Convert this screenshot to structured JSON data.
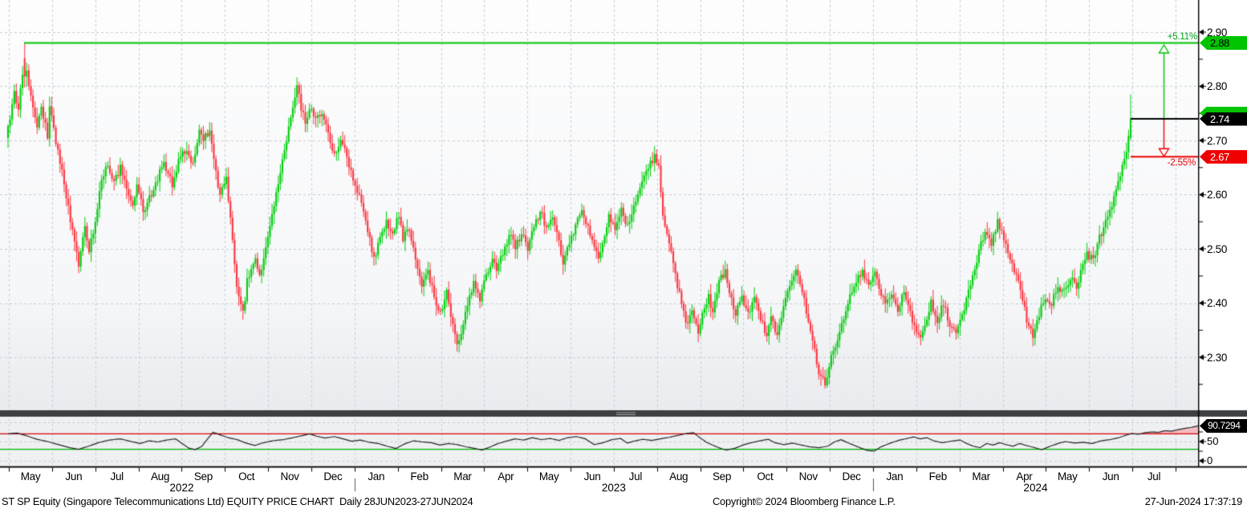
{
  "footer": {
    "title": "ST SP Equity (Singapore Telecommunications Ltd) EQUITY PRICE CHART  Daily 28JUN2023-27JUN2024",
    "copyright": "Copyright© 2024 Bloomberg Finance L.P.",
    "timestamp": "27-Jun-2024 17:37:19"
  },
  "colors": {
    "candle_up": "#00cd0c",
    "candle_down": "#fb3640",
    "high_line": "#00c400",
    "last_line": "#000000",
    "target_line": "#f00000",
    "tag_high_bg": "#00c400",
    "tag_high_text": "#000000",
    "tag_last_bg": "#000000",
    "tag_last_text": "#ffffff",
    "tag_backing_bg": "#00c400",
    "tag_target_bg": "#f00000",
    "tag_target_text": "#ffffff",
    "tag_rsi_bg": "#000000",
    "tag_rsi_text": "#ffffff",
    "pct_up_text": "#00a316",
    "pct_down_text": "#e00007",
    "grid": "#c7ccd8",
    "axis": "#000000",
    "rsi_line": "#26262a",
    "rsi_overbought_line": "#dd0000",
    "rsi_oversold_line": "#00b400",
    "rsi_over_fill": "rgba(255,70,80,0.30)",
    "rsi_under_fill": "rgba(0,190,60,0.30)",
    "separator": "#3d4043",
    "separator_grip": "#9aa0a4",
    "main_bg_top": "#fefefe",
    "main_bg_bottom": "#e9ebee",
    "rsi_bg": "#eef0f2"
  },
  "chart_data": {
    "type": "candlestick",
    "instrument": "ST SP Equity",
    "panels": [
      "price",
      "rsi"
    ],
    "ylim": [
      2.24,
      2.92
    ],
    "price_ticks": [
      "2.90",
      "2.80",
      "2.70",
      "2.60",
      "2.50",
      "2.40",
      "2.30"
    ],
    "minor_tick_step": 0.05,
    "months": [
      "May",
      "Jun",
      "Jul",
      "Aug",
      "Sep",
      "Oct",
      "Nov",
      "Dec",
      "Jan",
      "Feb",
      "Mar",
      "Apr",
      "May",
      "Jun",
      "Jul",
      "Aug",
      "Sep",
      "Oct",
      "Nov",
      "Dec",
      "Jan",
      "Feb",
      "Mar",
      "Apr",
      "May",
      "Jun",
      "Jul"
    ],
    "years": [
      "2022",
      "2023",
      "2024"
    ],
    "annotations": {
      "high": {
        "label": "2.88",
        "value": 2.88,
        "pct": "+5.11%"
      },
      "last": {
        "label": "2.74",
        "value": 2.74
      },
      "target": {
        "label": "2.67",
        "value": 2.67,
        "pct": "-2.55%"
      }
    },
    "record_high": {
      "day": 8,
      "open": 2.852,
      "high": 2.88,
      "low": 2.798,
      "close": 2.818
    },
    "last_candle": {
      "open": 2.705,
      "high": 2.785,
      "low": 2.7,
      "close": 2.74
    },
    "price_path": [
      [
        0,
        2.72
      ],
      [
        3,
        2.79
      ],
      [
        5,
        2.76
      ],
      [
        8,
        2.86
      ],
      [
        11,
        2.78
      ],
      [
        14,
        2.72
      ],
      [
        16,
        2.76
      ],
      [
        19,
        2.71
      ],
      [
        20,
        2.76
      ],
      [
        23,
        2.7
      ],
      [
        27,
        2.62
      ],
      [
        31,
        2.53
      ],
      [
        34,
        2.47
      ],
      [
        37,
        2.54
      ],
      [
        39,
        2.5
      ],
      [
        42,
        2.55
      ],
      [
        45,
        2.63
      ],
      [
        48,
        2.66
      ],
      [
        51,
        2.62
      ],
      [
        54,
        2.65
      ],
      [
        57,
        2.61
      ],
      [
        60,
        2.58
      ],
      [
        62,
        2.62
      ],
      [
        65,
        2.57
      ],
      [
        69,
        2.6
      ],
      [
        72,
        2.63
      ],
      [
        75,
        2.66
      ],
      [
        79,
        2.62
      ],
      [
        82,
        2.66
      ],
      [
        85,
        2.68
      ],
      [
        89,
        2.66
      ],
      [
        92,
        2.72
      ],
      [
        94,
        2.7
      ],
      [
        97,
        2.72
      ],
      [
        99,
        2.66
      ],
      [
        102,
        2.6
      ],
      [
        105,
        2.63
      ],
      [
        108,
        2.52
      ],
      [
        110,
        2.43
      ],
      [
        113,
        2.38
      ],
      [
        115,
        2.44
      ],
      [
        119,
        2.48
      ],
      [
        121,
        2.45
      ],
      [
        124,
        2.5
      ],
      [
        127,
        2.56
      ],
      [
        130,
        2.62
      ],
      [
        133,
        2.68
      ],
      [
        136,
        2.74
      ],
      [
        139,
        2.8
      ],
      [
        141,
        2.76
      ],
      [
        143,
        2.73
      ],
      [
        145,
        2.76
      ],
      [
        148,
        2.74
      ],
      [
        151,
        2.75
      ],
      [
        154,
        2.71
      ],
      [
        157,
        2.67
      ],
      [
        160,
        2.7
      ],
      [
        162,
        2.68
      ],
      [
        165,
        2.64
      ],
      [
        168,
        2.61
      ],
      [
        171,
        2.57
      ],
      [
        174,
        2.52
      ],
      [
        176,
        2.48
      ],
      [
        179,
        2.52
      ],
      [
        182,
        2.55
      ],
      [
        185,
        2.53
      ],
      [
        188,
        2.56
      ],
      [
        190,
        2.52
      ],
      [
        193,
        2.54
      ],
      [
        196,
        2.48
      ],
      [
        199,
        2.43
      ],
      [
        202,
        2.46
      ],
      [
        205,
        2.41
      ],
      [
        208,
        2.38
      ],
      [
        211,
        2.42
      ],
      [
        214,
        2.36
      ],
      [
        216,
        2.32
      ],
      [
        219,
        2.36
      ],
      [
        221,
        2.4
      ],
      [
        224,
        2.44
      ],
      [
        227,
        2.41
      ],
      [
        230,
        2.45
      ],
      [
        233,
        2.48
      ],
      [
        235,
        2.46
      ],
      [
        239,
        2.5
      ],
      [
        242,
        2.53
      ],
      [
        244,
        2.5
      ],
      [
        247,
        2.53
      ],
      [
        250,
        2.5
      ],
      [
        253,
        2.54
      ],
      [
        256,
        2.57
      ],
      [
        259,
        2.54
      ],
      [
        262,
        2.56
      ],
      [
        265,
        2.51
      ],
      [
        267,
        2.47
      ],
      [
        270,
        2.51
      ],
      [
        273,
        2.54
      ],
      [
        276,
        2.57
      ],
      [
        279,
        2.54
      ],
      [
        282,
        2.5
      ],
      [
        284,
        2.48
      ],
      [
        287,
        2.53
      ],
      [
        289,
        2.56
      ],
      [
        292,
        2.54
      ],
      [
        295,
        2.57
      ],
      [
        298,
        2.54
      ],
      [
        300,
        2.57
      ],
      [
        303,
        2.6
      ],
      [
        306,
        2.63
      ],
      [
        309,
        2.66
      ],
      [
        311,
        2.67
      ],
      [
        313,
        2.65
      ],
      [
        315,
        2.56
      ],
      [
        319,
        2.5
      ],
      [
        321,
        2.45
      ],
      [
        324,
        2.4
      ],
      [
        326,
        2.36
      ],
      [
        329,
        2.38
      ],
      [
        332,
        2.35
      ],
      [
        334,
        2.38
      ],
      [
        337,
        2.41
      ],
      [
        339,
        2.38
      ],
      [
        342,
        2.44
      ],
      [
        345,
        2.46
      ],
      [
        347,
        2.42
      ],
      [
        350,
        2.38
      ],
      [
        353,
        2.41
      ],
      [
        356,
        2.38
      ],
      [
        359,
        2.41
      ],
      [
        362,
        2.37
      ],
      [
        365,
        2.34
      ],
      [
        367,
        2.38
      ],
      [
        370,
        2.34
      ],
      [
        373,
        2.4
      ],
      [
        376,
        2.43
      ],
      [
        379,
        2.46
      ],
      [
        382,
        2.42
      ],
      [
        385,
        2.37
      ],
      [
        388,
        2.31
      ],
      [
        390,
        2.27
      ],
      [
        393,
        2.25
      ],
      [
        396,
        2.3
      ],
      [
        399,
        2.33
      ],
      [
        402,
        2.37
      ],
      [
        405,
        2.41
      ],
      [
        408,
        2.44
      ],
      [
        411,
        2.46
      ],
      [
        414,
        2.43
      ],
      [
        417,
        2.46
      ],
      [
        419,
        2.43
      ],
      [
        422,
        2.4
      ],
      [
        425,
        2.42
      ],
      [
        428,
        2.39
      ],
      [
        431,
        2.42
      ],
      [
        434,
        2.38
      ],
      [
        437,
        2.35
      ],
      [
        439,
        2.33
      ],
      [
        442,
        2.37
      ],
      [
        444,
        2.4
      ],
      [
        447,
        2.37
      ],
      [
        450,
        2.4
      ],
      [
        453,
        2.36
      ],
      [
        456,
        2.34
      ],
      [
        459,
        2.38
      ],
      [
        462,
        2.42
      ],
      [
        465,
        2.46
      ],
      [
        467,
        2.5
      ],
      [
        470,
        2.53
      ],
      [
        473,
        2.51
      ],
      [
        476,
        2.55
      ],
      [
        479,
        2.52
      ],
      [
        482,
        2.48
      ],
      [
        485,
        2.45
      ],
      [
        488,
        2.41
      ],
      [
        490,
        2.37
      ],
      [
        493,
        2.34
      ],
      [
        496,
        2.38
      ],
      [
        499,
        2.41
      ],
      [
        502,
        2.4
      ],
      [
        505,
        2.43
      ],
      [
        508,
        2.42
      ],
      [
        511,
        2.45
      ],
      [
        514,
        2.43
      ],
      [
        516,
        2.46
      ],
      [
        519,
        2.49
      ],
      [
        522,
        2.48
      ],
      [
        525,
        2.52
      ],
      [
        528,
        2.55
      ],
      [
        531,
        2.58
      ],
      [
        533,
        2.61
      ],
      [
        535,
        2.64
      ],
      [
        538,
        2.68
      ],
      [
        540,
        2.74
      ]
    ],
    "rsi_panel": {
      "ticks": [
        "50",
        "0"
      ],
      "overbought": 70,
      "oversold": 30,
      "last": "90.7294",
      "last_value": 90.7294,
      "path": [
        [
          0,
          70
        ],
        [
          4,
          72
        ],
        [
          8,
          66
        ],
        [
          13,
          56
        ],
        [
          18,
          50
        ],
        [
          23,
          42
        ],
        [
          28,
          34
        ],
        [
          32,
          30
        ],
        [
          36,
          37
        ],
        [
          41,
          47
        ],
        [
          46,
          54
        ],
        [
          51,
          57
        ],
        [
          56,
          50
        ],
        [
          60,
          45
        ],
        [
          64,
          52
        ],
        [
          68,
          49
        ],
        [
          72,
          54
        ],
        [
          76,
          57
        ],
        [
          79,
          45
        ],
        [
          82,
          33
        ],
        [
          85,
          29
        ],
        [
          88,
          38
        ],
        [
          91,
          60
        ],
        [
          93,
          74
        ],
        [
          96,
          68
        ],
        [
          100,
          60
        ],
        [
          104,
          55
        ],
        [
          108,
          46
        ],
        [
          112,
          40
        ],
        [
          116,
          47
        ],
        [
          120,
          52
        ],
        [
          125,
          55
        ],
        [
          130,
          61
        ],
        [
          134,
          66
        ],
        [
          137,
          70
        ],
        [
          140,
          64
        ],
        [
          144,
          59
        ],
        [
          148,
          63
        ],
        [
          152,
          57
        ],
        [
          156,
          51
        ],
        [
          160,
          54
        ],
        [
          164,
          48
        ],
        [
          168,
          45
        ],
        [
          172,
          38
        ],
        [
          176,
          32
        ],
        [
          180,
          44
        ],
        [
          184,
          52
        ],
        [
          188,
          49
        ],
        [
          192,
          47
        ],
        [
          196,
          41
        ],
        [
          200,
          45
        ],
        [
          204,
          42
        ],
        [
          208,
          36
        ],
        [
          212,
          32
        ],
        [
          215,
          28
        ],
        [
          218,
          34
        ],
        [
          222,
          44
        ],
        [
          226,
          51
        ],
        [
          230,
          57
        ],
        [
          234,
          54
        ],
        [
          238,
          60
        ],
        [
          242,
          55
        ],
        [
          246,
          58
        ],
        [
          250,
          53
        ],
        [
          254,
          60
        ],
        [
          258,
          63
        ],
        [
          262,
          57
        ],
        [
          266,
          42
        ],
        [
          270,
          47
        ],
        [
          274,
          55
        ],
        [
          278,
          58
        ],
        [
          281,
          46
        ],
        [
          284,
          51
        ],
        [
          288,
          56
        ],
        [
          292,
          53
        ],
        [
          296,
          57
        ],
        [
          300,
          61
        ],
        [
          304,
          66
        ],
        [
          308,
          71
        ],
        [
          311,
          73
        ],
        [
          314,
          60
        ],
        [
          317,
          48
        ],
        [
          320,
          40
        ],
        [
          323,
          33
        ],
        [
          326,
          28
        ],
        [
          330,
          33
        ],
        [
          334,
          42
        ],
        [
          338,
          48
        ],
        [
          342,
          53
        ],
        [
          345,
          56
        ],
        [
          348,
          47
        ],
        [
          352,
          42
        ],
        [
          356,
          46
        ],
        [
          360,
          41
        ],
        [
          364,
          36
        ],
        [
          368,
          34
        ],
        [
          372,
          38
        ],
        [
          375,
          49
        ],
        [
          378,
          55
        ],
        [
          381,
          47
        ],
        [
          384,
          40
        ],
        [
          387,
          33
        ],
        [
          390,
          27
        ],
        [
          393,
          25
        ],
        [
          396,
          36
        ],
        [
          400,
          45
        ],
        [
          404,
          53
        ],
        [
          408,
          58
        ],
        [
          411,
          62
        ],
        [
          414,
          57
        ],
        [
          417,
          60
        ],
        [
          420,
          52
        ],
        [
          424,
          47
        ],
        [
          428,
          51
        ],
        [
          432,
          54
        ],
        [
          435,
          45
        ],
        [
          438,
          38
        ],
        [
          441,
          34
        ],
        [
          444,
          45
        ],
        [
          447,
          41
        ],
        [
          450,
          47
        ],
        [
          453,
          42
        ],
        [
          456,
          38
        ],
        [
          459,
          45
        ],
        [
          462,
          40
        ],
        [
          466,
          34
        ],
        [
          469,
          29
        ],
        [
          473,
          38
        ],
        [
          477,
          46
        ],
        [
          480,
          50
        ],
        [
          484,
          46
        ],
        [
          488,
          48
        ],
        [
          492,
          45
        ],
        [
          496,
          52
        ],
        [
          500,
          55
        ],
        [
          504,
          60
        ],
        [
          507,
          66
        ],
        [
          510,
          71
        ],
        [
          513,
          69
        ],
        [
          516,
          73
        ],
        [
          519,
          75
        ],
        [
          522,
          74
        ],
        [
          525,
          78
        ],
        [
          528,
          77
        ],
        [
          531,
          81
        ],
        [
          534,
          84
        ],
        [
          537,
          87
        ],
        [
          540,
          90.73
        ]
      ]
    }
  }
}
